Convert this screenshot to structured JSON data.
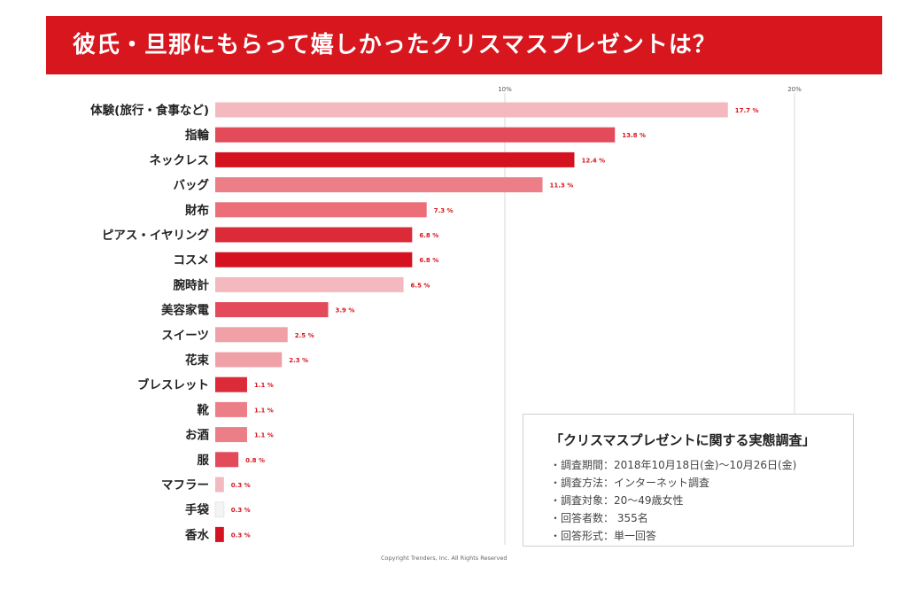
{
  "header": {
    "title": "彼氏・旦那にもらって嬉しかったクリスマスプレゼントは？"
  },
  "chart_data": {
    "type": "bar",
    "orientation": "horizontal",
    "title": "彼氏・旦那にもらって嬉しかったクリスマスプレゼントは？",
    "categories": [
      "体験(旅行・食事など)",
      "指輪",
      "ネックレス",
      "バッグ",
      "財布",
      "ピアス・イヤリング",
      "コスメ",
      "腕時計",
      "美容家電",
      "スイーツ",
      "花束",
      "ブレスレット",
      "靴",
      "お酒",
      "服",
      "マフラー",
      "手袋",
      "香水"
    ],
    "values": [
      17.7,
      13.8,
      12.4,
      11.3,
      7.3,
      6.8,
      6.8,
      6.5,
      3.9,
      2.5,
      2.3,
      1.1,
      1.1,
      1.1,
      0.8,
      0.3,
      0.3,
      0.3
    ],
    "value_labels": [
      "17.7 %",
      "13.8 %",
      "12.4 %",
      "11.3 %",
      "7.3 %",
      "6.8 %",
      "6.8 %",
      "6.5 %",
      "3.9 %",
      "2.5 %",
      "2.3 %",
      "1.1 %",
      "1.1 %",
      "1.1 %",
      "0.8 %",
      "0.3 %",
      "0.3 %",
      "0.3 %"
    ],
    "bar_colors": [
      "#f4b9be",
      "#e34a5a",
      "#d5121f",
      "#ec7e88",
      "#eb6e79",
      "#db2a38",
      "#d5121f",
      "#f4b9be",
      "#e34a5a",
      "#f0a1a8",
      "#f0a1a8",
      "#db2a38",
      "#ec7e88",
      "#ec7e88",
      "#e34a5a",
      "#f4b9be",
      "#f4f4f4",
      "#d5121f"
    ],
    "xlim": [
      0,
      20
    ],
    "xticks": [
      10,
      20
    ],
    "xtick_labels": [
      "10%",
      "20%"
    ],
    "grid": true,
    "value_label_color": "#d7161e"
  },
  "survey": {
    "title": "「クリスマスプレゼントに関する実態調査」",
    "lines": [
      "・調査期間：2018年10月18日(金)～10月26日(金)",
      "・調査方法：インターネット調査",
      "・調査対象：20～49歳女性",
      "・回答者数： 355名",
      "・回答形式：単一回答"
    ]
  },
  "footer": {
    "copyright": "Copyright Trenders, Inc. All Rights Reserved"
  },
  "colors": {
    "brand": "#d7161e",
    "grid": "#d8d8d8"
  }
}
